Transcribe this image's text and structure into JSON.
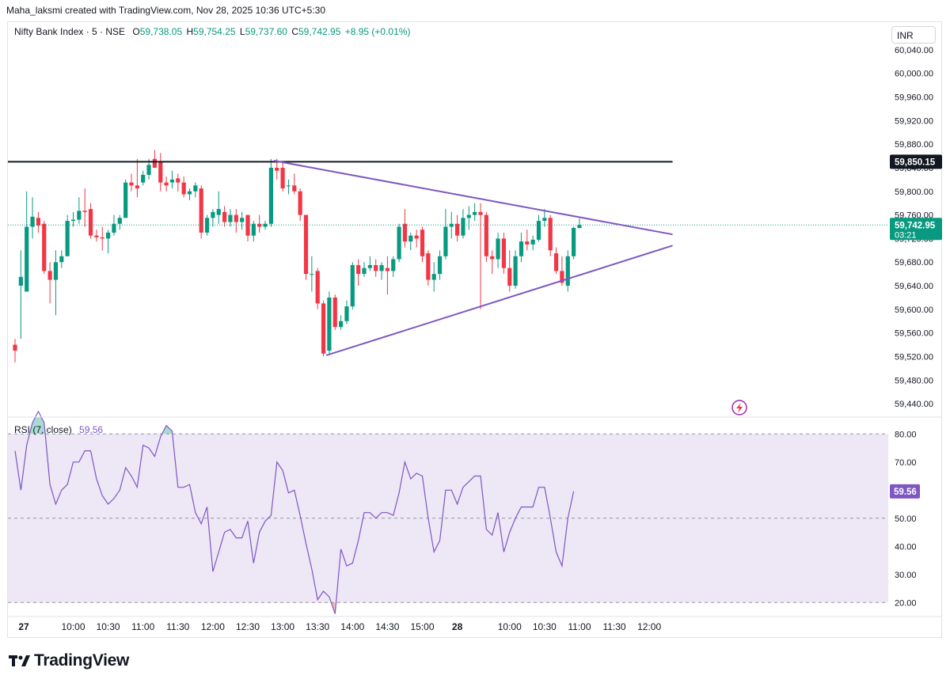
{
  "header": {
    "caption": "Maha_laksmi created with TradingView.com, Nov 28, 2025 10:36 UTC+5:30"
  },
  "legend": {
    "symbol": "Nifty Bank Index · 5 · NSE",
    "o_label": "O",
    "o_value": "59,738.05",
    "h_label": "H",
    "h_value": "59,754.25",
    "l_label": "L",
    "l_value": "59,737.60",
    "c_label": "C",
    "c_value": "59,742.95",
    "change": "+8.95 (+0.01%)"
  },
  "currency": "INR",
  "footer": {
    "logo_text": "TradingView"
  },
  "colors": {
    "up": "#089981",
    "down": "#f23645",
    "trend": "#7e57c2",
    "resistance": "#131722",
    "rsi_band": "#ede7f6"
  },
  "chart_data": [
    {
      "type": "candlestick",
      "title": "Nifty Bank Index · 5 · NSE",
      "ylim": [
        59420,
        60060
      ],
      "y_ticks": [
        "60,040.00",
        "60,000.00",
        "59,960.00",
        "59,920.00",
        "59,880.00",
        "59,840.00",
        "59,800.00",
        "59,760.00",
        "59,720.00",
        "59,680.00",
        "59,640.00",
        "59,600.00",
        "59,560.00",
        "59,520.00",
        "59,480.00",
        "59,440.00"
      ],
      "x_ticks": [
        {
          "label": "27",
          "i": 1.5,
          "bold": true
        },
        {
          "label": "10:00",
          "i": 10
        },
        {
          "label": "10:30",
          "i": 16
        },
        {
          "label": "11:00",
          "i": 22
        },
        {
          "label": "11:30",
          "i": 28
        },
        {
          "label": "12:00",
          "i": 34
        },
        {
          "label": "12:30",
          "i": 40
        },
        {
          "label": "13:00",
          "i": 46
        },
        {
          "label": "13:30",
          "i": 52
        },
        {
          "label": "14:00",
          "i": 58
        },
        {
          "label": "14:30",
          "i": 64
        },
        {
          "label": "15:00",
          "i": 70
        },
        {
          "label": "28",
          "i": 76,
          "bold": true
        },
        {
          "label": "10:00",
          "i": 85
        },
        {
          "label": "10:30",
          "i": 91
        },
        {
          "label": "11:00",
          "i": 97
        },
        {
          "label": "11:30",
          "i": 103
        },
        {
          "label": "12:00",
          "i": 109
        }
      ],
      "candles": [
        {
          "o": 59540,
          "h": 59550,
          "l": 59510,
          "c": 59530
        },
        {
          "o": 59640,
          "h": 59700,
          "l": 59550,
          "c": 59655
        },
        {
          "o": 59630,
          "h": 59800,
          "l": 59630,
          "c": 59740
        },
        {
          "o": 59740,
          "h": 59790,
          "l": 59720,
          "c": 59757
        },
        {
          "o": 59755,
          "h": 59765,
          "l": 59730,
          "c": 59742
        },
        {
          "o": 59745,
          "h": 59750,
          "l": 59660,
          "c": 59665
        },
        {
          "o": 59665,
          "h": 59680,
          "l": 59610,
          "c": 59650
        },
        {
          "o": 59650,
          "h": 59700,
          "l": 59590,
          "c": 59680
        },
        {
          "o": 59680,
          "h": 59700,
          "l": 59670,
          "c": 59690
        },
        {
          "o": 59690,
          "h": 59760,
          "l": 59690,
          "c": 59750
        },
        {
          "o": 59750,
          "h": 59765,
          "l": 59740,
          "c": 59752
        },
        {
          "o": 59752,
          "h": 59790,
          "l": 59745,
          "c": 59767
        },
        {
          "o": 59767,
          "h": 59805,
          "l": 59740,
          "c": 59765
        },
        {
          "o": 59770,
          "h": 59780,
          "l": 59720,
          "c": 59725
        },
        {
          "o": 59725,
          "h": 59735,
          "l": 59715,
          "c": 59722
        },
        {
          "o": 59722,
          "h": 59740,
          "l": 59700,
          "c": 59720
        },
        {
          "o": 59720,
          "h": 59735,
          "l": 59695,
          "c": 59730
        },
        {
          "o": 59730,
          "h": 59760,
          "l": 59725,
          "c": 59745
        },
        {
          "o": 59745,
          "h": 59760,
          "l": 59735,
          "c": 59755
        },
        {
          "o": 59755,
          "h": 59820,
          "l": 59755,
          "c": 59815
        },
        {
          "o": 59815,
          "h": 59830,
          "l": 59800,
          "c": 59810
        },
        {
          "o": 59810,
          "h": 59855,
          "l": 59790,
          "c": 59805
        },
        {
          "o": 59815,
          "h": 59835,
          "l": 59810,
          "c": 59828
        },
        {
          "o": 59828,
          "h": 59855,
          "l": 59820,
          "c": 59845
        },
        {
          "o": 59855,
          "h": 59870,
          "l": 59840,
          "c": 59840
        },
        {
          "o": 59850,
          "h": 59865,
          "l": 59800,
          "c": 59815
        },
        {
          "o": 59815,
          "h": 59825,
          "l": 59800,
          "c": 59810
        },
        {
          "o": 59815,
          "h": 59835,
          "l": 59805,
          "c": 59820
        },
        {
          "o": 59822,
          "h": 59830,
          "l": 59800,
          "c": 59815
        },
        {
          "o": 59815,
          "h": 59825,
          "l": 59790,
          "c": 59795
        },
        {
          "o": 59795,
          "h": 59805,
          "l": 59785,
          "c": 59800
        },
        {
          "o": 59800,
          "h": 59815,
          "l": 59790,
          "c": 59810
        },
        {
          "o": 59805,
          "h": 59810,
          "l": 59720,
          "c": 59730
        },
        {
          "o": 59730,
          "h": 59760,
          "l": 59725,
          "c": 59755
        },
        {
          "o": 59755,
          "h": 59770,
          "l": 59740,
          "c": 59765
        },
        {
          "o": 59760,
          "h": 59800,
          "l": 59745,
          "c": 59770
        },
        {
          "o": 59765,
          "h": 59775,
          "l": 59740,
          "c": 59748
        },
        {
          "o": 59748,
          "h": 59770,
          "l": 59740,
          "c": 59760
        },
        {
          "o": 59760,
          "h": 59770,
          "l": 59730,
          "c": 59748
        },
        {
          "o": 59748,
          "h": 59765,
          "l": 59735,
          "c": 59755
        },
        {
          "o": 59760,
          "h": 59760,
          "l": 59715,
          "c": 59725
        },
        {
          "o": 59725,
          "h": 59750,
          "l": 59715,
          "c": 59745
        },
        {
          "o": 59745,
          "h": 59760,
          "l": 59730,
          "c": 59740
        },
        {
          "o": 59740,
          "h": 59750,
          "l": 59735,
          "c": 59745
        },
        {
          "o": 59745,
          "h": 59855,
          "l": 59740,
          "c": 59840
        },
        {
          "o": 59840,
          "h": 59855,
          "l": 59820,
          "c": 59835
        },
        {
          "o": 59840,
          "h": 59850,
          "l": 59800,
          "c": 59805
        },
        {
          "o": 59810,
          "h": 59820,
          "l": 59795,
          "c": 59810
        },
        {
          "o": 59810,
          "h": 59830,
          "l": 59795,
          "c": 59800
        },
        {
          "o": 59800,
          "h": 59805,
          "l": 59750,
          "c": 59760
        },
        {
          "o": 59760,
          "h": 59760,
          "l": 59650,
          "c": 59660
        },
        {
          "o": 59660,
          "h": 59690,
          "l": 59630,
          "c": 59660
        },
        {
          "o": 59665,
          "h": 59670,
          "l": 59600,
          "c": 59610
        },
        {
          "o": 59610,
          "h": 59615,
          "l": 59520,
          "c": 59525
        },
        {
          "o": 59530,
          "h": 59630,
          "l": 59525,
          "c": 59620
        },
        {
          "o": 59620,
          "h": 59625,
          "l": 59565,
          "c": 59570
        },
        {
          "o": 59570,
          "h": 59590,
          "l": 59565,
          "c": 59580
        },
        {
          "o": 59580,
          "h": 59615,
          "l": 59575,
          "c": 59605
        },
        {
          "o": 59605,
          "h": 59680,
          "l": 59600,
          "c": 59675
        },
        {
          "o": 59675,
          "h": 59685,
          "l": 59640,
          "c": 59660
        },
        {
          "o": 59660,
          "h": 59680,
          "l": 59655,
          "c": 59670
        },
        {
          "o": 59670,
          "h": 59690,
          "l": 59665,
          "c": 59675
        },
        {
          "o": 59675,
          "h": 59685,
          "l": 59655,
          "c": 59665
        },
        {
          "o": 59665,
          "h": 59680,
          "l": 59650,
          "c": 59675
        },
        {
          "o": 59670,
          "h": 59690,
          "l": 59625,
          "c": 59665
        },
        {
          "o": 59665,
          "h": 59690,
          "l": 59655,
          "c": 59685
        },
        {
          "o": 59685,
          "h": 59745,
          "l": 59680,
          "c": 59740
        },
        {
          "o": 59745,
          "h": 59770,
          "l": 59705,
          "c": 59715
        },
        {
          "o": 59715,
          "h": 59730,
          "l": 59700,
          "c": 59725
        },
        {
          "o": 59725,
          "h": 59735,
          "l": 59705,
          "c": 59720
        },
        {
          "o": 59735,
          "h": 59740,
          "l": 59680,
          "c": 59690
        },
        {
          "o": 59695,
          "h": 59700,
          "l": 59640,
          "c": 59650
        },
        {
          "o": 59650,
          "h": 59680,
          "l": 59630,
          "c": 59660
        },
        {
          "o": 59660,
          "h": 59700,
          "l": 59650,
          "c": 59690
        },
        {
          "o": 59690,
          "h": 59770,
          "l": 59685,
          "c": 59740
        },
        {
          "o": 59740,
          "h": 59765,
          "l": 59720,
          "c": 59745
        },
        {
          "o": 59745,
          "h": 59760,
          "l": 59715,
          "c": 59725
        },
        {
          "o": 59725,
          "h": 59770,
          "l": 59720,
          "c": 59755
        },
        {
          "o": 59755,
          "h": 59775,
          "l": 59735,
          "c": 59760
        },
        {
          "o": 59760,
          "h": 59780,
          "l": 59750,
          "c": 59765
        },
        {
          "o": 59765,
          "h": 59780,
          "l": 59600,
          "c": 59760
        },
        {
          "o": 59760,
          "h": 59765,
          "l": 59680,
          "c": 59690
        },
        {
          "o": 59690,
          "h": 59700,
          "l": 59660,
          "c": 59685
        },
        {
          "o": 59685,
          "h": 59730,
          "l": 59670,
          "c": 59720
        },
        {
          "o": 59720,
          "h": 59730,
          "l": 59660,
          "c": 59670
        },
        {
          "o": 59670,
          "h": 59700,
          "l": 59630,
          "c": 59640
        },
        {
          "o": 59640,
          "h": 59700,
          "l": 59635,
          "c": 59690
        },
        {
          "o": 59690,
          "h": 59730,
          "l": 59680,
          "c": 59715
        },
        {
          "o": 59715,
          "h": 59735,
          "l": 59700,
          "c": 59710
        },
        {
          "o": 59710,
          "h": 59725,
          "l": 59700,
          "c": 59718
        },
        {
          "o": 59718,
          "h": 59760,
          "l": 59715,
          "c": 59750
        },
        {
          "o": 59750,
          "h": 59770,
          "l": 59740,
          "c": 59755
        },
        {
          "o": 59755,
          "h": 59760,
          "l": 59690,
          "c": 59700
        },
        {
          "o": 59695,
          "h": 59705,
          "l": 59660,
          "c": 59665
        },
        {
          "o": 59665,
          "h": 59690,
          "l": 59640,
          "c": 59645
        },
        {
          "o": 59640,
          "h": 59700,
          "l": 59630,
          "c": 59690
        },
        {
          "o": 59690,
          "h": 59740,
          "l": 59685,
          "c": 59738
        },
        {
          "o": 59738,
          "h": 59754,
          "l": 59737,
          "c": 59743
        }
      ],
      "lines": [
        {
          "name": "resistance",
          "i1": -3,
          "y1": 59850.15,
          "i2": 113,
          "y2": 59850.15,
          "color": "#131722"
        },
        {
          "name": "upper-trendline",
          "i1": 44.5,
          "y1": 59852,
          "i2": 113,
          "y2": 59727,
          "color": "#7e57c2"
        },
        {
          "name": "lower-trendline",
          "i1": 53.5,
          "y1": 59522,
          "i2": 113,
          "y2": 59708,
          "color": "#7e57c2"
        }
      ],
      "price_labels": [
        {
          "name": "resistance-price-label",
          "value": "59,850.15",
          "y": 59850.15,
          "bg": "#131722"
        },
        {
          "name": "last-price-label",
          "value": "59,742.95",
          "sub": "03:21",
          "y": 59742.95,
          "bg": "#089981"
        }
      ]
    },
    {
      "type": "line",
      "title": "RSI (7, close)",
      "series_name": "RSI (7, close)",
      "last_value": "59.56",
      "ylim": [
        15,
        86
      ],
      "y_ticks": [
        "80.00",
        "70.00",
        "60.00",
        "50.00",
        "40.00",
        "30.00",
        "20.00"
      ],
      "levels": [
        80,
        50,
        20
      ],
      "values": [
        74,
        60,
        76,
        84,
        88,
        84,
        62,
        55,
        60,
        62,
        70,
        70,
        74,
        74,
        64,
        58,
        55,
        57,
        60,
        68,
        65,
        61,
        76,
        75,
        72,
        79,
        83,
        81,
        61,
        61,
        62,
        52,
        48,
        54,
        31,
        38,
        45,
        46,
        43,
        43,
        49,
        34,
        45,
        49,
        51,
        70,
        67,
        59,
        60,
        51,
        41,
        32,
        21,
        24,
        22,
        16,
        39,
        33,
        34,
        42,
        52,
        52,
        50,
        52,
        52,
        51,
        59,
        70,
        64,
        66,
        65,
        50,
        38,
        42,
        60,
        60,
        55,
        61,
        63,
        65,
        65,
        46,
        44,
        52,
        38,
        45,
        50,
        54,
        54,
        54,
        61,
        61,
        50,
        38,
        33,
        50,
        59.56
      ]
    }
  ]
}
